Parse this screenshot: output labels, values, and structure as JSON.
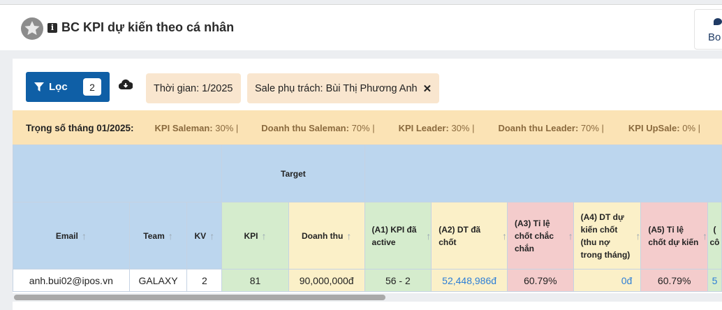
{
  "header": {
    "title": "BC KPI dự kiến theo cá nhân",
    "bot_label": "Bo"
  },
  "toolbar": {
    "filter_label": "Lọc",
    "filter_count": "2",
    "chips": [
      {
        "label": "Thời gian: 1/2025"
      },
      {
        "label": "Sale phụ trách: Bùi Thị Phương Anh"
      }
    ]
  },
  "weights": {
    "title": "Trọng số tháng 01/2025:",
    "items": [
      {
        "name": "KPI Saleman:",
        "value": " 30% |"
      },
      {
        "name": "Doanh thu Saleman:",
        "value": " 70% |"
      },
      {
        "name": "KPI Leader:",
        "value": " 30% |"
      },
      {
        "name": "Doanh thu Leader:",
        "value": " 70% |"
      },
      {
        "name": "KPI UpSale:",
        "value": " 0% |"
      }
    ]
  },
  "table": {
    "group_target": "Target",
    "columns": {
      "email": "Email",
      "team": "Team",
      "kv": "KV",
      "kpi": "KPI",
      "revenue": "Doanh thu",
      "a1": "(A1) KPI đã active",
      "a2": "(A2) DT đã chốt",
      "a3": "(A3) Tỉ lệ chốt chắc chắn",
      "a4": "(A4) DT dự kiến chốt (thu nợ trong tháng)",
      "a5": "(A5) Tỉ lệ chốt dự kiến",
      "a6": "(",
      "a6b": "cô"
    },
    "row": {
      "email": "anh.bui02@ipos.vn",
      "team": "GALAXY",
      "kv": "2",
      "kpi": "81",
      "revenue": "90,000,000đ",
      "a1": "56 - 2",
      "a2": "52,448,986đ",
      "a3": "60.79%",
      "a4": "0đ",
      "a5": "60.79%",
      "a6": "5"
    }
  },
  "colors": {
    "primary": "#0f5fa6",
    "chip": "#f9e6cf",
    "weights_bg": "#fbe3b5",
    "header_blue": "#bcd6ee",
    "green": "#d5eccd",
    "cream": "#fbf0c8",
    "pink": "#f4cccc",
    "link": "#2d7ed6"
  },
  "icons": [
    "star-logo-icon",
    "info-icon",
    "filter-icon",
    "cloud-download-icon",
    "close-icon",
    "sort-up-icon",
    "chat-icon"
  ]
}
